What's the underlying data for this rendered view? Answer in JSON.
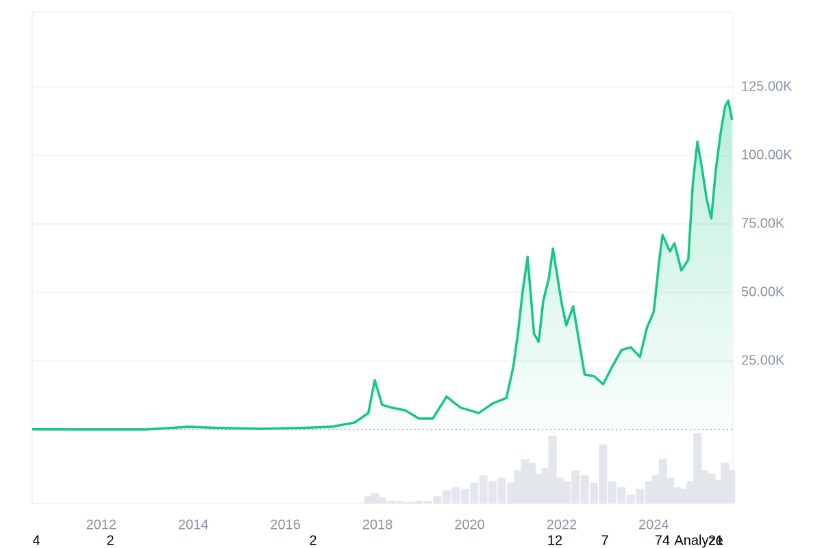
{
  "chart_data": {
    "type": "line",
    "x": [
      2010.5,
      2011.5,
      2013.0,
      2013.9,
      2014.5,
      2015.5,
      2016.5,
      2017.0,
      2017.5,
      2017.8,
      2017.94,
      2018.1,
      2018.3,
      2018.6,
      2018.9,
      2019.2,
      2019.5,
      2019.8,
      2020.2,
      2020.5,
      2020.8,
      2020.95,
      2021.05,
      2021.15,
      2021.26,
      2021.4,
      2021.5,
      2021.6,
      2021.72,
      2021.81,
      2022.0,
      2022.1,
      2022.25,
      2022.4,
      2022.5,
      2022.7,
      2022.9,
      2023.1,
      2023.3,
      2023.5,
      2023.7,
      2023.85,
      2024.0,
      2024.12,
      2024.19,
      2024.35,
      2024.45,
      2024.6,
      2024.75,
      2024.85,
      2024.95,
      2025.05,
      2025.15,
      2025.25,
      2025.35,
      2025.45,
      2025.55,
      2025.62,
      2025.7
    ],
    "series": [
      {
        "color": "#16c784",
        "values": [
          60,
          15,
          20,
          1000,
          600,
          250,
          650,
          1000,
          2500,
          6000,
          18000,
          9000,
          8000,
          7000,
          4000,
          4000,
          12000,
          8000,
          6000,
          9500,
          11500,
          23000,
          35000,
          50000,
          63000,
          35000,
          32000,
          47000,
          55000,
          66000,
          46000,
          38000,
          45000,
          30000,
          20000,
          19500,
          16500,
          23000,
          29000,
          30000,
          26500,
          37000,
          43000,
          62000,
          71000,
          65000,
          68000,
          58000,
          62000,
          90000,
          105000,
          95000,
          84000,
          77000,
          95000,
          108000,
          118000,
          120000,
          113000
        ]
      }
    ],
    "volume": {
      "color": "#e3e7ec",
      "x": [
        2017.8,
        2017.95,
        2018.1,
        2018.3,
        2018.5,
        2018.7,
        2018.9,
        2019.1,
        2019.3,
        2019.5,
        2019.7,
        2019.9,
        2020.1,
        2020.3,
        2020.5,
        2020.7,
        2020.9,
        2021.05,
        2021.2,
        2021.35,
        2021.5,
        2021.65,
        2021.8,
        2021.95,
        2022.1,
        2022.3,
        2022.5,
        2022.7,
        2022.9,
        2023.1,
        2023.3,
        2023.5,
        2023.7,
        2023.9,
        2024.05,
        2024.2,
        2024.35,
        2024.5,
        2024.65,
        2024.8,
        2024.95,
        2025.1,
        2025.25,
        2025.4,
        2025.55,
        2025.68
      ],
      "values": [
        10,
        14,
        8,
        4,
        3,
        2,
        4,
        3,
        10,
        18,
        22,
        20,
        28,
        38,
        30,
        35,
        28,
        45,
        60,
        55,
        40,
        48,
        92,
        35,
        30,
        45,
        38,
        28,
        80,
        30,
        22,
        12,
        20,
        30,
        38,
        60,
        35,
        22,
        20,
        30,
        95,
        45,
        40,
        32,
        55,
        45
      ],
      "ylim": [
        0,
        100
      ]
    },
    "xlim": [
      2010.5,
      2025.72
    ],
    "xticks": [
      2012,
      2014,
      2016,
      2018,
      2020,
      2022,
      2024
    ],
    "ylim": [
      0,
      152250
    ],
    "yticks": [
      {
        "value": 25000,
        "label": "25.00K"
      },
      {
        "value": 50000,
        "label": "50.00K"
      },
      {
        "value": 75000,
        "label": "75.00K"
      },
      {
        "value": 100000,
        "label": "100.00K"
      },
      {
        "value": 125000,
        "label": "125.00K"
      }
    ],
    "grid": true
  },
  "overlay_texts": [
    "4",
    "2",
    "2",
    "12",
    "7",
    "74",
    "Analyze",
    "21"
  ]
}
